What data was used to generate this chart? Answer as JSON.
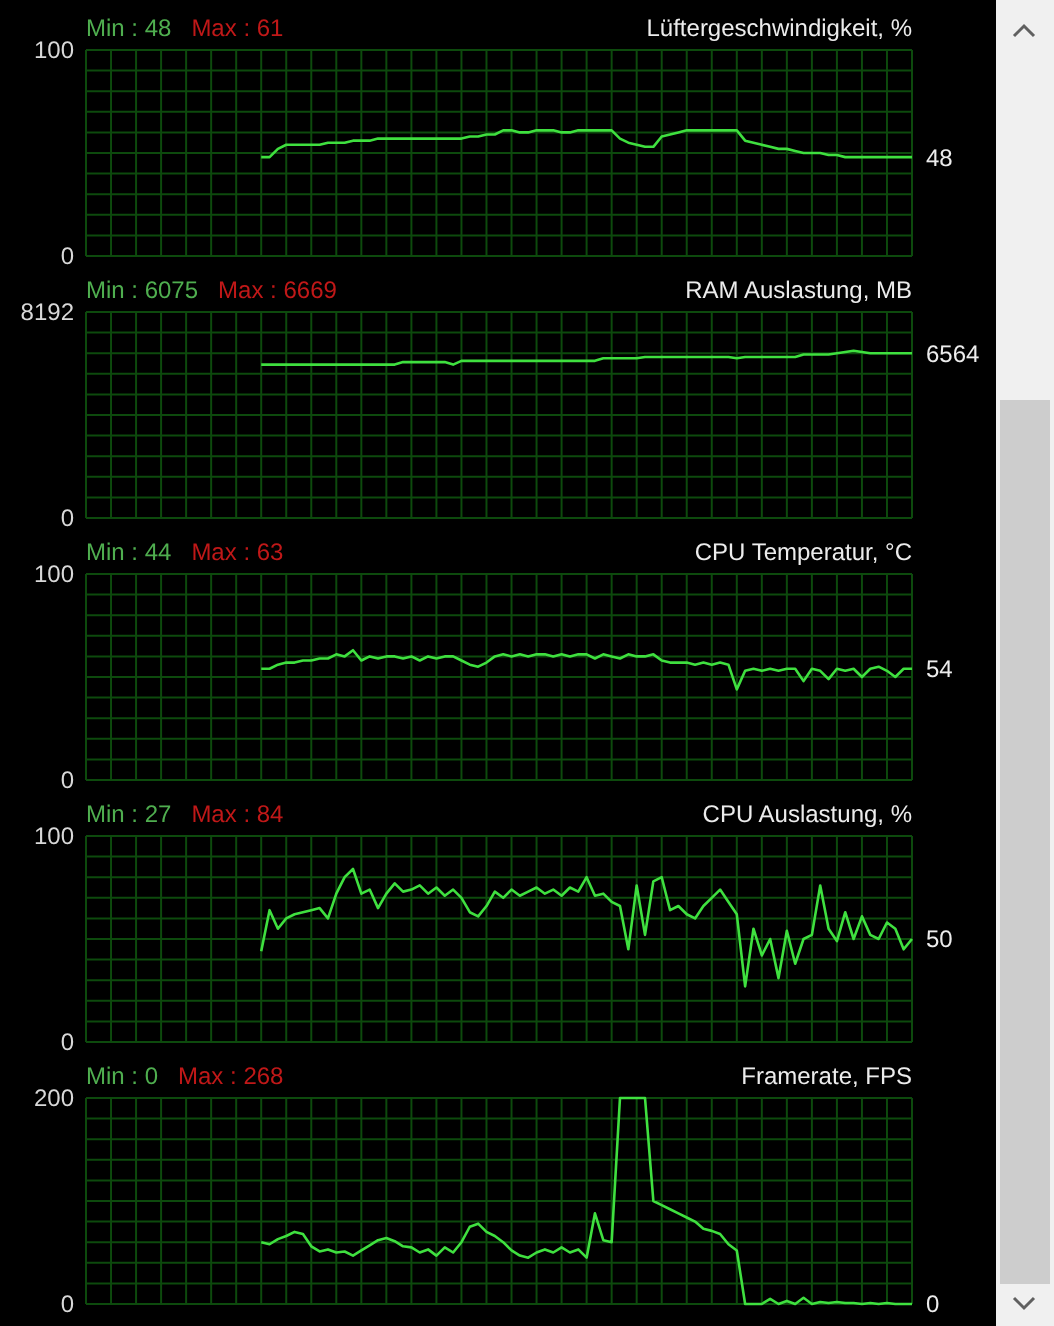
{
  "chart_data": [
    {
      "type": "line",
      "title": "Lüftergeschwindigkeit, %",
      "tick_labels": "y",
      "grid": true,
      "ylim": [
        0,
        100
      ],
      "yticks": [
        0,
        {
          "value": 10,
          "label": null
        },
        {
          "value": 20,
          "label": null
        },
        {
          "value": 30,
          "label": null
        },
        {
          "value": 40,
          "label": null
        },
        {
          "value": 50,
          "label": null
        },
        {
          "value": 60,
          "label": null
        },
        {
          "value": 70,
          "label": null
        },
        {
          "value": 80,
          "label": null
        },
        {
          "value": 90,
          "label": null
        },
        100
      ],
      "categories": [
        null,
        null,
        null,
        null,
        null,
        null,
        null,
        null,
        null,
        null,
        null,
        null,
        null,
        null,
        null,
        null,
        null,
        null,
        null,
        null,
        null,
        null,
        null,
        null,
        null,
        null,
        null,
        null,
        null,
        null,
        null,
        null,
        null,
        null,
        null,
        null,
        null,
        null,
        null,
        null,
        null,
        null,
        null,
        null,
        null,
        null,
        null,
        null,
        null,
        null,
        null,
        null,
        null,
        null,
        null,
        null,
        null,
        null,
        null,
        null,
        null,
        null,
        null,
        null,
        null,
        null,
        null,
        null,
        null,
        null,
        null,
        null,
        null,
        null,
        null,
        null,
        null,
        null,
        null,
        null,
        null,
        null,
        null,
        null,
        null,
        null,
        null,
        null,
        null,
        null,
        null,
        null,
        null,
        null,
        null,
        null,
        null,
        null,
        null,
        null
      ],
      "series": [
        {
          "color": "#3fe03f",
          "values": [
            null,
            null,
            null,
            null,
            null,
            null,
            null,
            null,
            null,
            null,
            null,
            null,
            null,
            null,
            null,
            null,
            null,
            null,
            null,
            null,
            null,
            48,
            48,
            52,
            54,
            54,
            54,
            54,
            54,
            55,
            55,
            55,
            56,
            56,
            56,
            57,
            57,
            57,
            57,
            57,
            57,
            57,
            57,
            57,
            57,
            57,
            58,
            58,
            59,
            59,
            61,
            61,
            60,
            60,
            61,
            61,
            61,
            60,
            60,
            61,
            61,
            61,
            61,
            61,
            57,
            55,
            54,
            53,
            53,
            58,
            59,
            60,
            61,
            61,
            61,
            61,
            61,
            61,
            61,
            56,
            55,
            54,
            53,
            52,
            52,
            51,
            50,
            50,
            50,
            49,
            49,
            48,
            48,
            48,
            48,
            48,
            48,
            48,
            48,
            48
          ]
        }
      ],
      "annotations": [
        "Min : 48",
        "Max : 61",
        "48"
      ]
    },
    {
      "type": "line",
      "title": "RAM Auslastung, MB",
      "tick_labels": "y",
      "grid": true,
      "ylim": [
        0,
        8192
      ],
      "yticks": [
        0,
        {
          "value": 819.2,
          "label": null
        },
        {
          "value": 1638.4,
          "label": null
        },
        {
          "value": 2457.6,
          "label": null
        },
        {
          "value": 3276.8,
          "label": null
        },
        {
          "value": 4096,
          "label": null
        },
        {
          "value": 4915.2,
          "label": null
        },
        {
          "value": 5734.4,
          "label": null
        },
        {
          "value": 6553.6,
          "label": null
        },
        {
          "value": 7372.8,
          "label": null
        },
        8192
      ],
      "categories": [
        null,
        null,
        null,
        null,
        null,
        null,
        null,
        null,
        null,
        null,
        null,
        null,
        null,
        null,
        null,
        null,
        null,
        null,
        null,
        null,
        null,
        null,
        null,
        null,
        null,
        null,
        null,
        null,
        null,
        null,
        null,
        null,
        null,
        null,
        null,
        null,
        null,
        null,
        null,
        null,
        null,
        null,
        null,
        null,
        null,
        null,
        null,
        null,
        null,
        null,
        null,
        null,
        null,
        null,
        null,
        null,
        null,
        null,
        null,
        null,
        null,
        null,
        null,
        null,
        null,
        null,
        null,
        null,
        null,
        null,
        null,
        null,
        null,
        null,
        null,
        null,
        null,
        null,
        null,
        null,
        null,
        null,
        null,
        null,
        null,
        null,
        null,
        null,
        null,
        null,
        null,
        null,
        null,
        null,
        null,
        null,
        null,
        null,
        null,
        null
      ],
      "series": [
        {
          "color": "#3fe03f",
          "values": [
            null,
            null,
            null,
            null,
            null,
            null,
            null,
            null,
            null,
            null,
            null,
            null,
            null,
            null,
            null,
            null,
            null,
            null,
            null,
            null,
            null,
            6100,
            6100,
            6100,
            6100,
            6100,
            6100,
            6100,
            6100,
            6100,
            6100,
            6100,
            6100,
            6100,
            6100,
            6100,
            6100,
            6100,
            6200,
            6200,
            6200,
            6200,
            6200,
            6200,
            6100,
            6250,
            6250,
            6250,
            6250,
            6250,
            6250,
            6250,
            6250,
            6250,
            6250,
            6250,
            6250,
            6250,
            6250,
            6250,
            6250,
            6250,
            6350,
            6350,
            6350,
            6350,
            6350,
            6400,
            6400,
            6400,
            6400,
            6400,
            6400,
            6400,
            6400,
            6400,
            6400,
            6400,
            6350,
            6400,
            6400,
            6400,
            6400,
            6400,
            6400,
            6400,
            6500,
            6500,
            6500,
            6500,
            6550,
            6600,
            6650,
            6600,
            6550,
            6550,
            6550,
            6550,
            6550,
            6550
          ]
        }
      ],
      "annotations": [
        "Min : 6075",
        "Max : 6669",
        "6564"
      ]
    },
    {
      "type": "line",
      "title": "CPU Temperatur, °C",
      "tick_labels": "y",
      "grid": true,
      "ylim": [
        0,
        100
      ],
      "yticks": [
        0,
        {
          "value": 10,
          "label": null
        },
        {
          "value": 20,
          "label": null
        },
        {
          "value": 30,
          "label": null
        },
        {
          "value": 40,
          "label": null
        },
        {
          "value": 50,
          "label": null
        },
        {
          "value": 60,
          "label": null
        },
        {
          "value": 70,
          "label": null
        },
        {
          "value": 80,
          "label": null
        },
        {
          "value": 90,
          "label": null
        },
        100
      ],
      "categories": [
        null,
        null,
        null,
        null,
        null,
        null,
        null,
        null,
        null,
        null,
        null,
        null,
        null,
        null,
        null,
        null,
        null,
        null,
        null,
        null,
        null,
        null,
        null,
        null,
        null,
        null,
        null,
        null,
        null,
        null,
        null,
        null,
        null,
        null,
        null,
        null,
        null,
        null,
        null,
        null,
        null,
        null,
        null,
        null,
        null,
        null,
        null,
        null,
        null,
        null,
        null,
        null,
        null,
        null,
        null,
        null,
        null,
        null,
        null,
        null,
        null,
        null,
        null,
        null,
        null,
        null,
        null,
        null,
        null,
        null,
        null,
        null,
        null,
        null,
        null,
        null,
        null,
        null,
        null,
        null,
        null,
        null,
        null,
        null,
        null,
        null,
        null,
        null,
        null,
        null,
        null,
        null,
        null,
        null,
        null,
        null,
        null,
        null,
        null,
        null
      ],
      "series": [
        {
          "color": "#3fe03f",
          "values": [
            null,
            null,
            null,
            null,
            null,
            null,
            null,
            null,
            null,
            null,
            null,
            null,
            null,
            null,
            null,
            null,
            null,
            null,
            null,
            null,
            null,
            54,
            54,
            56,
            57,
            57,
            58,
            58,
            59,
            59,
            61,
            60,
            63,
            58,
            60,
            59,
            60,
            60,
            59,
            60,
            58,
            60,
            59,
            60,
            60,
            58,
            56,
            55,
            57,
            60,
            61,
            60,
            61,
            60,
            61,
            61,
            60,
            61,
            60,
            61,
            61,
            59,
            61,
            60,
            59,
            61,
            60,
            60,
            61,
            58,
            57,
            57,
            57,
            56,
            57,
            56,
            57,
            56,
            44,
            53,
            54,
            53,
            54,
            53,
            54,
            54,
            48,
            54,
            53,
            49,
            54,
            53,
            54,
            50,
            54,
            55,
            53,
            50,
            54,
            54
          ]
        }
      ],
      "annotations": [
        "Min : 44",
        "Max : 63",
        "54"
      ]
    },
    {
      "type": "line",
      "title": "CPU Auslastung, %",
      "tick_labels": "y",
      "grid": true,
      "ylim": [
        0,
        100
      ],
      "yticks": [
        0,
        {
          "value": 10,
          "label": null
        },
        {
          "value": 20,
          "label": null
        },
        {
          "value": 30,
          "label": null
        },
        {
          "value": 40,
          "label": null
        },
        {
          "value": 50,
          "label": null
        },
        {
          "value": 60,
          "label": null
        },
        {
          "value": 70,
          "label": null
        },
        {
          "value": 80,
          "label": null
        },
        {
          "value": 90,
          "label": null
        },
        100
      ],
      "categories": [
        null,
        null,
        null,
        null,
        null,
        null,
        null,
        null,
        null,
        null,
        null,
        null,
        null,
        null,
        null,
        null,
        null,
        null,
        null,
        null,
        null,
        null,
        null,
        null,
        null,
        null,
        null,
        null,
        null,
        null,
        null,
        null,
        null,
        null,
        null,
        null,
        null,
        null,
        null,
        null,
        null,
        null,
        null,
        null,
        null,
        null,
        null,
        null,
        null,
        null,
        null,
        null,
        null,
        null,
        null,
        null,
        null,
        null,
        null,
        null,
        null,
        null,
        null,
        null,
        null,
        null,
        null,
        null,
        null,
        null,
        null,
        null,
        null,
        null,
        null,
        null,
        null,
        null,
        null,
        null,
        null,
        null,
        null,
        null,
        null,
        null,
        null,
        null,
        null,
        null,
        null,
        null,
        null,
        null,
        null,
        null,
        null,
        null,
        null,
        null
      ],
      "series": [
        {
          "color": "#3fe03f",
          "values": [
            null,
            null,
            null,
            null,
            null,
            null,
            null,
            null,
            null,
            null,
            null,
            null,
            null,
            null,
            null,
            null,
            null,
            null,
            null,
            null,
            null,
            44,
            64,
            55,
            60,
            62,
            63,
            64,
            65,
            60,
            72,
            80,
            84,
            72,
            74,
            65,
            72,
            77,
            73,
            74,
            76,
            72,
            75,
            71,
            74,
            70,
            63,
            61,
            66,
            73,
            70,
            74,
            71,
            73,
            75,
            72,
            74,
            71,
            75,
            73,
            80,
            71,
            72,
            68,
            66,
            45,
            76,
            52,
            78,
            80,
            64,
            66,
            62,
            60,
            66,
            70,
            74,
            68,
            62,
            27,
            55,
            42,
            50,
            31,
            54,
            38,
            50,
            52,
            76,
            55,
            49,
            63,
            50,
            61,
            52,
            50,
            58,
            55,
            45,
            50
          ]
        }
      ],
      "annotations": [
        "Min : 27",
        "Max : 84",
        "50"
      ]
    },
    {
      "type": "line",
      "title": "Framerate, FPS",
      "tick_labels": "y",
      "grid": true,
      "ylim": [
        0,
        200
      ],
      "yticks": [
        0,
        {
          "value": 20,
          "label": null
        },
        {
          "value": 40,
          "label": null
        },
        {
          "value": 60,
          "label": null
        },
        {
          "value": 80,
          "label": null
        },
        {
          "value": 100,
          "label": null
        },
        {
          "value": 120,
          "label": null
        },
        {
          "value": 140,
          "label": null
        },
        {
          "value": 160,
          "label": null
        },
        {
          "value": 180,
          "label": null
        },
        200
      ],
      "categories": [
        null,
        null,
        null,
        null,
        null,
        null,
        null,
        null,
        null,
        null,
        null,
        null,
        null,
        null,
        null,
        null,
        null,
        null,
        null,
        null,
        null,
        null,
        null,
        null,
        null,
        null,
        null,
        null,
        null,
        null,
        null,
        null,
        null,
        null,
        null,
        null,
        null,
        null,
        null,
        null,
        null,
        null,
        null,
        null,
        null,
        null,
        null,
        null,
        null,
        null,
        null,
        null,
        null,
        null,
        null,
        null,
        null,
        null,
        null,
        null,
        null,
        null,
        null,
        null,
        null,
        null,
        null,
        null,
        null,
        null,
        null,
        null,
        null,
        null,
        null,
        null,
        null,
        null,
        null,
        null,
        null,
        null,
        null,
        null,
        null,
        null,
        null,
        null,
        null,
        null,
        null,
        null,
        null,
        null,
        null,
        null,
        null,
        null,
        null,
        null
      ],
      "series": [
        {
          "color": "#3fe03f",
          "values": [
            null,
            null,
            null,
            null,
            null,
            null,
            null,
            null,
            null,
            null,
            null,
            null,
            null,
            null,
            null,
            null,
            null,
            null,
            null,
            null,
            null,
            60,
            58,
            63,
            66,
            70,
            68,
            56,
            51,
            53,
            50,
            51,
            47,
            52,
            57,
            62,
            64,
            61,
            56,
            55,
            50,
            53,
            47,
            55,
            50,
            60,
            75,
            78,
            70,
            66,
            60,
            52,
            47,
            45,
            50,
            53,
            50,
            55,
            50,
            53,
            45,
            88,
            62,
            60,
            200,
            200,
            200,
            200,
            100,
            96,
            92,
            88,
            84,
            80,
            73,
            71,
            68,
            58,
            52,
            0,
            0,
            0,
            5,
            0,
            3,
            0,
            6,
            0,
            2,
            1,
            2,
            1,
            1,
            0,
            1,
            0,
            1,
            0,
            0,
            0
          ]
        }
      ],
      "annotations": [
        "Min : 0",
        "Max : 268",
        "0"
      ]
    }
  ]
}
